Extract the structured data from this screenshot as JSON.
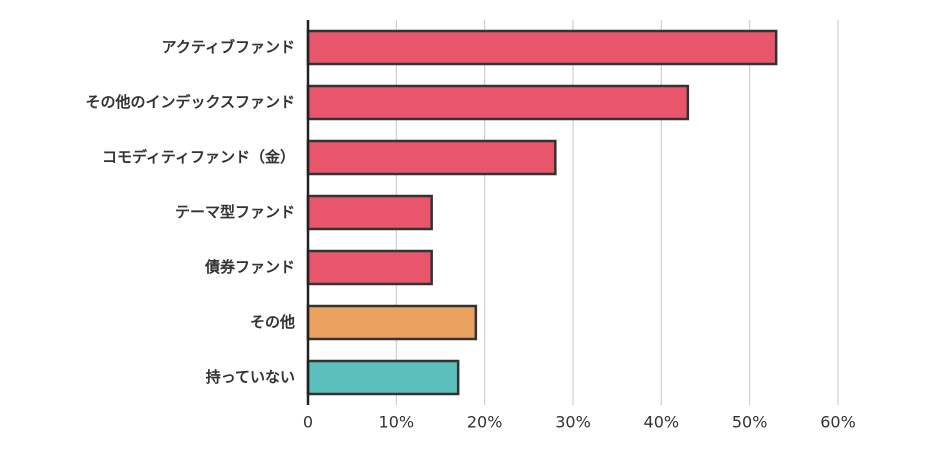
{
  "chart_data": {
    "type": "bar",
    "orientation": "horizontal",
    "categories": [
      "アクティブファンド",
      "その他のインデックスファンド",
      "コモディティファンド（金）",
      "テーマ型ファンド",
      "債券ファンド",
      "その他",
      "持っていない"
    ],
    "values": [
      53,
      43,
      28,
      14,
      14,
      19,
      17
    ],
    "colors": [
      "#e9566c",
      "#e9566c",
      "#e9566c",
      "#e9566c",
      "#e9566c",
      "#eba25e",
      "#5bc0bc"
    ],
    "xlim": [
      0,
      60
    ],
    "xticks": [
      0,
      {
        "value": 10,
        "label": "10%"
      },
      {
        "value": 20,
        "label": "20%"
      },
      {
        "value": 30,
        "label": "30%"
      },
      {
        "value": 40,
        "label": "40%"
      },
      {
        "value": 50,
        "label": "50%"
      },
      {
        "value": 60,
        "label": "60%"
      }
    ],
    "grid": true
  }
}
